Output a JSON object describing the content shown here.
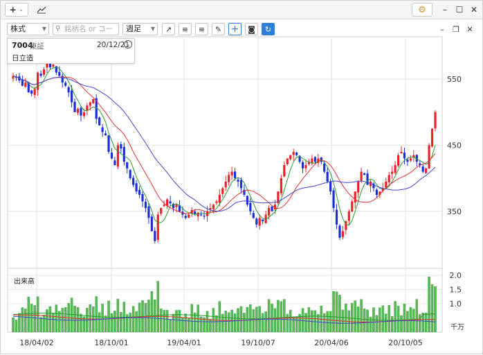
{
  "titlebar": {
    "add_label": "+",
    "add_dropdown": "⌄",
    "chart_icon": "trend-chart-icon",
    "settings_icon": "gear-icon",
    "controls": [
      "–",
      "☐",
      "✕"
    ]
  },
  "toolbar": {
    "market_select": "株式",
    "search_placeholder": "銘柄名 or コード",
    "period_select": "週足",
    "tools": [
      {
        "name": "trendline-tool-button",
        "glyph": "↗"
      },
      {
        "name": "align-left-tool-button",
        "glyph": "≡"
      },
      {
        "name": "align-right-tool-button",
        "glyph": "≡"
      },
      {
        "name": "pen-tool-button",
        "glyph": "✎"
      },
      {
        "name": "crosshair-tool-button",
        "glyph": "+"
      },
      {
        "name": "camera-tool-button",
        "glyph": "◙"
      },
      {
        "name": "refresh-tool-button",
        "glyph": "↻"
      }
    ],
    "panel_controls": [
      "–",
      "❐",
      "✕"
    ]
  },
  "info": {
    "code": "7004",
    "exchange": "東証",
    "date": "20/12/21",
    "name": "日立造"
  },
  "colors": {
    "up": "#e8232a",
    "down": "#1a2fd6",
    "ma_short": "#2a9a2a",
    "ma_mid": "#e03030",
    "ma_long": "#4444cc",
    "volume": "#55bb55",
    "grid": "#e4e4e4"
  },
  "chart_data": {
    "type": "candlestick",
    "price_axis": {
      "ticks": [
        350,
        450,
        550
      ],
      "range": [
        270,
        610
      ]
    },
    "volume_axis": {
      "label": "出来高",
      "unit": "千万",
      "ticks": [
        "2.0",
        "1.5",
        "1.0"
      ],
      "range": [
        0,
        2.1
      ]
    },
    "date_ticks": [
      "18/04/02",
      "18/10/01",
      "19/04/01",
      "19/10/07",
      "20/04/06",
      "20/10/05"
    ],
    "closes": [
      555,
      552,
      548,
      540,
      545,
      530,
      528,
      535,
      560,
      555,
      565,
      575,
      568,
      572,
      560,
      555,
      545,
      540,
      530,
      515,
      500,
      505,
      495,
      500,
      510,
      515,
      520,
      490,
      480,
      470,
      465,
      440,
      430,
      420,
      450,
      445,
      425,
      415,
      400,
      390,
      380,
      375,
      365,
      355,
      340,
      320,
      305,
      345,
      355,
      360,
      368,
      362,
      355,
      360,
      350,
      345,
      340,
      345,
      352,
      345,
      348,
      345,
      342,
      350,
      355,
      360,
      365,
      375,
      385,
      395,
      405,
      410,
      400,
      395,
      385,
      375,
      360,
      350,
      340,
      330,
      340,
      335,
      345,
      355,
      350,
      360,
      380,
      400,
      420,
      430,
      435,
      440,
      435,
      425,
      415,
      420,
      425,
      430,
      425,
      430,
      425,
      410,
      395,
      380,
      355,
      330,
      310,
      320,
      335,
      350,
      365,
      380,
      395,
      410,
      405,
      390,
      395,
      385,
      375,
      380,
      385,
      395,
      405,
      410,
      420,
      435,
      440,
      430,
      425,
      430,
      435,
      425,
      420,
      410,
      415,
      450,
      475,
      500
    ],
    "ma_note": "three moving average overlays (short, mid, long)"
  }
}
